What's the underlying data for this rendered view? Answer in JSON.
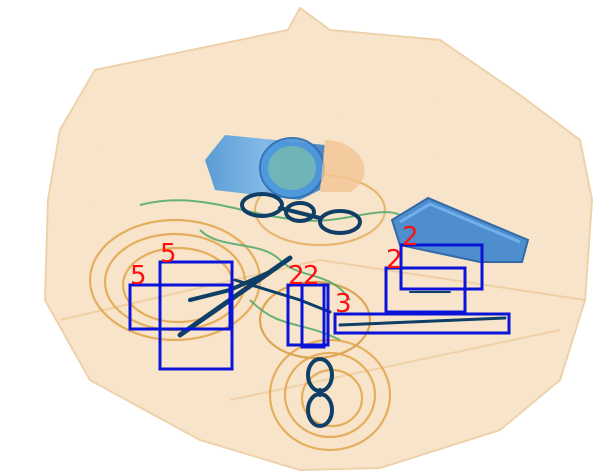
{
  "scene": {
    "description_hidden": false,
    "colors": {
      "bag": "#f6dfc0",
      "bag_edge": "#e9c89b",
      "organic_orange": "#e8a040",
      "metal_blue": "#2e6fb0",
      "dark_metal": "#0f3f66",
      "green": "#5fb070",
      "box_stroke": "#0a14d8",
      "label": "#ff1010"
    }
  },
  "detections": [
    {
      "label": "5"
    },
    {
      "label": "5"
    },
    {
      "label": "2"
    },
    {
      "label": "2"
    },
    {
      "label": "3"
    },
    {
      "label": "2"
    },
    {
      "label": "2"
    }
  ]
}
